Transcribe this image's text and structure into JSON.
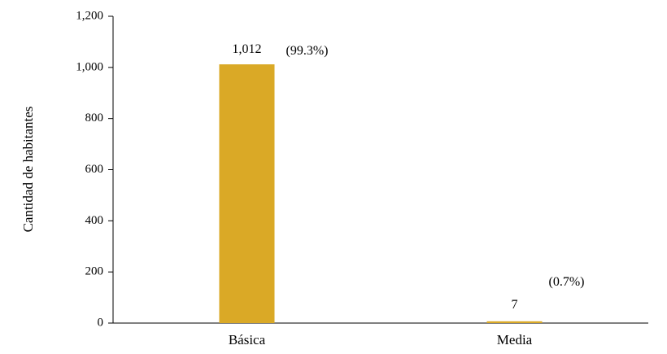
{
  "chart_data": {
    "type": "bar",
    "title": "",
    "xlabel": "",
    "ylabel": "Cantidad de habitantes",
    "categories": [
      "Básica",
      "Media"
    ],
    "values": [
      1012,
      7
    ],
    "value_labels": [
      "1,012",
      "7"
    ],
    "percent_labels": [
      "(99.3%)",
      "(0.7%)"
    ],
    "ylim": [
      0,
      1200
    ],
    "yticks": [
      0,
      200,
      400,
      600,
      800,
      1000,
      1200
    ],
    "ytick_labels": [
      "0",
      "200",
      "400",
      "600",
      "800",
      "1,000",
      "1,200"
    ],
    "bar_color": "#DAA926",
    "grid": false,
    "legend": "none"
  }
}
